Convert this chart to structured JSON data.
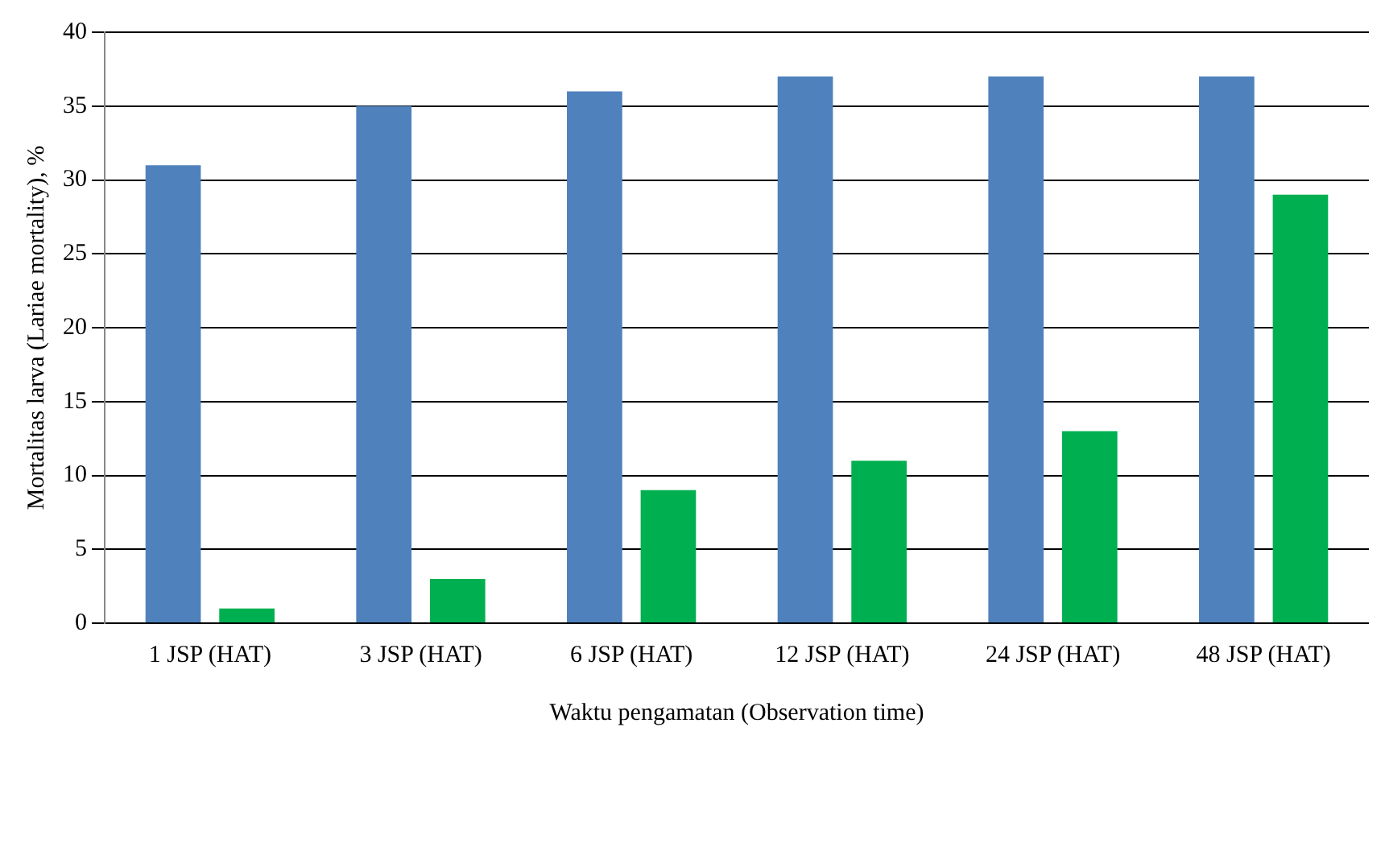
{
  "chart_data": {
    "type": "bar",
    "xlabel": "Waktu pengamatan (Observation time)",
    "ylabel": "Mortalitas larva (Lariae mortality), %",
    "categories": [
      "1 JSP (HAT)",
      "3 JSP (HAT)",
      "6 JSP (HAT)",
      "12 JSP (HAT)",
      "24 JSP (HAT)",
      "48 JSP (HAT)"
    ],
    "series": [
      {
        "color": "#4f81bd",
        "values": [
          31,
          35,
          36,
          37,
          37,
          37
        ]
      },
      {
        "color": "#00b050",
        "values": [
          1,
          3,
          9,
          11,
          13,
          29
        ]
      }
    ],
    "ylim": [
      0,
      40
    ],
    "yticks": [
      0,
      5,
      10,
      15,
      20,
      25,
      30,
      35,
      40
    ],
    "grid": "y",
    "legend": false
  }
}
